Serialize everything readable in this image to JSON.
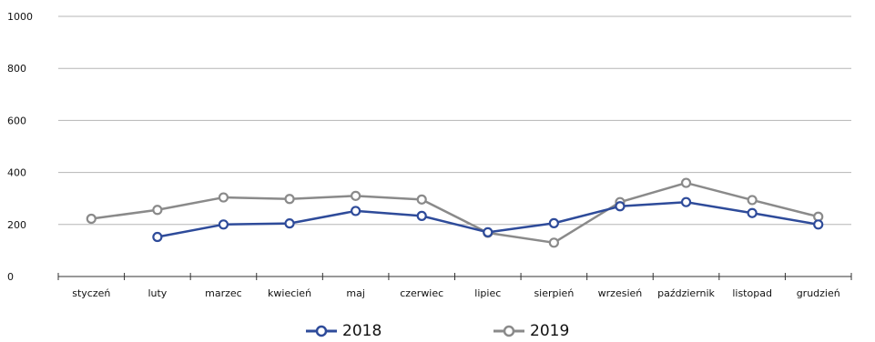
{
  "chart_data": {
    "type": "line",
    "categories": [
      "styczeń",
      "luty",
      "marzec",
      "kwiecień",
      "maj",
      "czerwiec",
      "lipiec",
      "sierpień",
      "wrzesień",
      "październik",
      "listopad",
      "grudzień"
    ],
    "series": [
      {
        "name": "2018",
        "color": "#2e4b9a",
        "values": [
          null,
          152,
          200,
          204,
          252,
          233,
          170,
          205,
          270,
          286,
          244,
          200
        ]
      },
      {
        "name": "2019",
        "color": "#8a8a8a",
        "values": [
          222,
          256,
          304,
          298,
          310,
          296,
          168,
          130,
          286,
          360,
          294,
          230
        ]
      }
    ],
    "ylim": [
      0,
      1000
    ],
    "yticks": [
      "0",
      "200",
      "400",
      "600",
      "800",
      "1000"
    ],
    "grid": true,
    "legend_position": "bottom"
  }
}
